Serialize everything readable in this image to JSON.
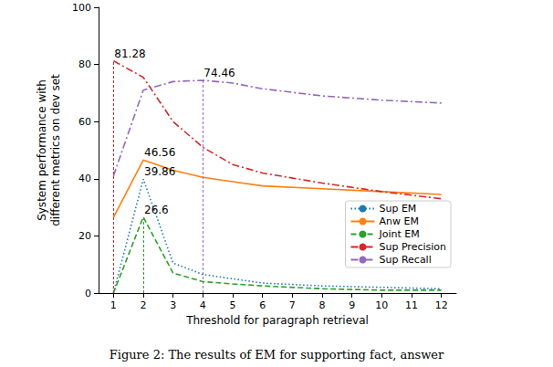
{
  "chart_data": {
    "type": "line",
    "caption": "Figure 2: The results of EM for supporting fact, answer",
    "x_label": "Threshold for paragraph retrieval",
    "y_label": "System performance with\ndifferent metrics on dev set",
    "x": [
      1,
      2,
      3,
      4,
      5,
      6,
      8,
      10,
      12
    ],
    "xlim": [
      0.5,
      12.5
    ],
    "xticks": [
      1,
      2,
      3,
      4,
      5,
      6,
      7,
      8,
      9,
      10,
      11,
      12
    ],
    "ylim": [
      0,
      100
    ],
    "yticks": [
      0,
      20,
      40,
      60,
      80,
      100
    ],
    "grid": false,
    "legend": "lower right",
    "series": [
      {
        "name": "Sup EM",
        "color": "#1f77b4",
        "line_style": "dotted",
        "values": [
          0,
          39.86,
          10.5,
          6.5,
          5,
          3.5,
          2.5,
          2,
          1.5
        ]
      },
      {
        "name": "Anw EM",
        "color": "#ff7f0e",
        "line_style": "solid",
        "values": [
          26.5,
          46.56,
          43,
          40.5,
          39,
          37.5,
          36.5,
          35.5,
          34.5
        ]
      },
      {
        "name": "Joint EM",
        "color": "#2ca02c",
        "line_style": "dashed",
        "values": [
          0,
          26.6,
          7,
          4,
          3.2,
          2.5,
          1.5,
          1,
          1
        ]
      },
      {
        "name": "Sup Precision",
        "color": "#d62728",
        "line_style": "dashdot",
        "values": [
          81.28,
          75.5,
          60,
          51,
          45,
          42,
          38.5,
          35.5,
          33
        ]
      },
      {
        "name": "Sup Recall",
        "color": "#9467bd",
        "line_style": "dashdot",
        "values": [
          41,
          71,
          74,
          74.46,
          73.5,
          71.5,
          69,
          67.5,
          66.5
        ]
      }
    ],
    "annotations": [
      {
        "text": "81.28",
        "x": 1,
        "y": 81.28,
        "series": "Sup Precision"
      },
      {
        "text": "74.46",
        "x": 4,
        "y": 74.46,
        "series": "Sup Recall"
      },
      {
        "text": "46.56",
        "x": 2,
        "y": 46.56,
        "series": "Anw EM"
      },
      {
        "text": "39.86",
        "x": 2,
        "y": 39.86,
        "series": "Sup EM"
      },
      {
        "text": "26.6",
        "x": 2,
        "y": 26.6,
        "series": "Joint EM"
      }
    ],
    "drop_lines": [
      {
        "x": 1,
        "y": 81.28,
        "series": "Sup Precision"
      },
      {
        "x": 2,
        "y": 26.6,
        "series": "Joint EM"
      },
      {
        "x": 4,
        "y": 74.46,
        "series": "Sup Recall"
      }
    ]
  }
}
